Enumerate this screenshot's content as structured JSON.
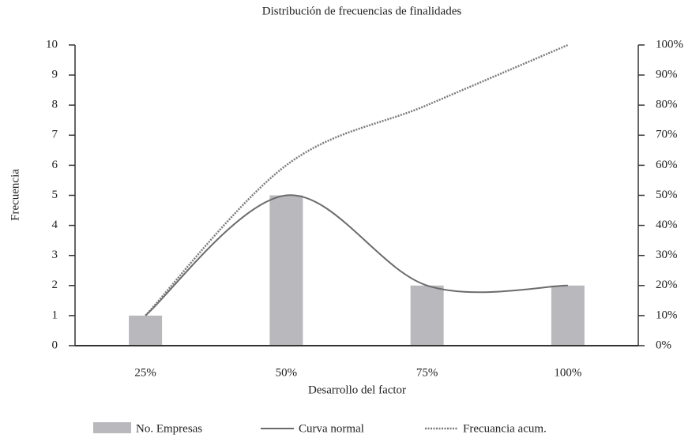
{
  "chart_data": {
    "type": "bar-line",
    "title": "Distribución de frecuencias de finalidades",
    "xlabel": "Desarrollo del factor",
    "ylabel": "Frecuencia",
    "categories": [
      "25%",
      "50%",
      "75%",
      "100%"
    ],
    "series": [
      {
        "name": "No. Empresas",
        "type": "bar",
        "color": "#b9b9bd",
        "values": [
          1,
          5,
          2,
          2
        ]
      },
      {
        "name": "Curva normal",
        "type": "line",
        "color": "#6b6b6b",
        "values": [
          1,
          5,
          2,
          2
        ]
      },
      {
        "name": "Frecuancia acum.",
        "type": "dotted",
        "color": "#7a7a7a",
        "axis": "y2",
        "values": [
          10,
          60,
          80,
          100
        ]
      }
    ],
    "ylim": [
      0,
      10
    ],
    "yticks": [
      0,
      1,
      2,
      3,
      4,
      5,
      6,
      7,
      8,
      9,
      10
    ],
    "y2lim": [
      0,
      100
    ],
    "y2ticks": [
      {
        "value": 0,
        "label": "0%"
      },
      {
        "value": 10,
        "label": "10%"
      },
      {
        "value": 20,
        "label": "20%"
      },
      {
        "value": 30,
        "label": "30%"
      },
      {
        "value": 40,
        "label": "40%"
      },
      {
        "value": 50,
        "label": "50%"
      },
      {
        "value": 60,
        "label": "60%"
      },
      {
        "value": 70,
        "label": "70%"
      },
      {
        "value": 80,
        "label": "80%"
      },
      {
        "value": 90,
        "label": "90%"
      },
      {
        "value": 100,
        "label": "100%"
      }
    ],
    "legend": "bottom"
  }
}
